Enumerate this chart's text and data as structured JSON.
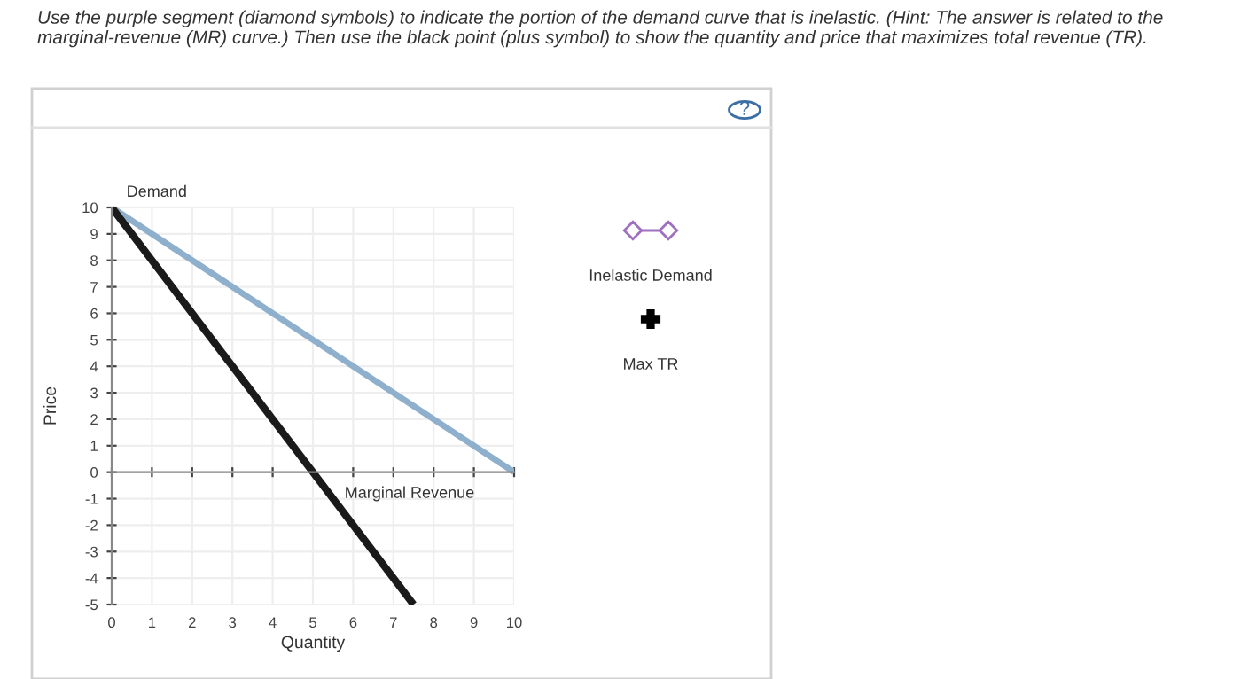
{
  "chart_data": {
    "type": "line",
    "title": "Use the purple segment (diamond symbols) to indicate the portion of the demand curve that is inelastic. (Hint: The answer is related to the marginal-revenue (MR) curve.) Then use the black point (plus symbol) to show the quantity and price that maximizes total revenue (TR).",
    "xlabel": "Quantity",
    "ylabel": "Price",
    "series": [
      {
        "name": "Demand",
        "color": "#8fb0cc",
        "x": [
          0,
          10
        ],
        "values": [
          10,
          0
        ]
      },
      {
        "name": "Marginal Revenue",
        "color": "#1a1a1a",
        "x": [
          0,
          7.5
        ],
        "values": [
          10,
          -5
        ]
      }
    ],
    "xlim": [
      0,
      10
    ],
    "ylim": [
      -5,
      10
    ],
    "xticks": [
      0,
      1,
      2,
      3,
      4,
      5,
      6,
      7,
      8,
      9,
      10
    ],
    "yticks": [
      -5,
      -4,
      -3,
      -2,
      -1,
      0,
      1,
      2,
      3,
      4,
      5,
      6,
      7,
      8,
      9,
      10
    ],
    "grid": true,
    "legend": false,
    "marker": "none",
    "line_style": "solid",
    "annotations": [
      "Inelastic Demand",
      "Max TR",
      "?"
    ]
  }
}
